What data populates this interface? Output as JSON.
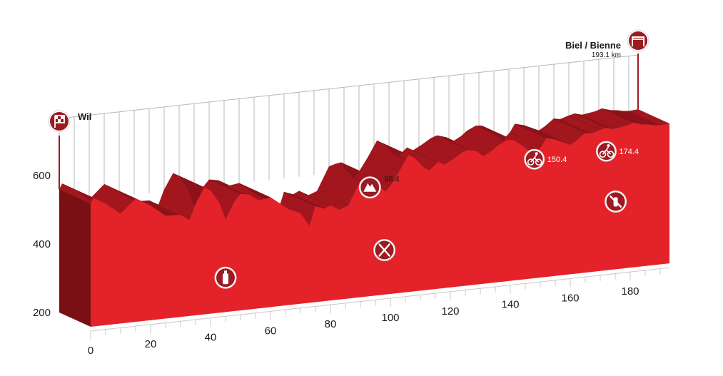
{
  "chart_data": {
    "type": "area",
    "title": "",
    "xlabel": "",
    "ylabel": "",
    "xlim": [
      0,
      193.1
    ],
    "ylim": [
      200,
      600
    ],
    "x_ticks": [
      0,
      20,
      40,
      60,
      80,
      100,
      120,
      140,
      160,
      180
    ],
    "y_ticks": [
      200,
      400,
      600
    ],
    "elevation_profile": {
      "x": [
        0,
        1,
        5,
        10,
        15,
        20,
        25,
        30,
        33,
        35,
        38,
        40,
        43,
        45,
        48,
        50,
        53,
        56,
        60,
        63,
        66,
        70,
        73,
        75,
        78,
        80,
        83,
        86,
        90,
        92,
        94,
        96,
        98.4,
        100,
        103,
        106,
        108,
        111,
        113,
        116,
        118,
        121,
        124,
        126,
        129,
        131,
        134,
        136,
        139,
        141,
        143,
        146,
        148,
        150.4,
        152,
        155,
        157,
        160,
        162,
        165,
        167,
        170,
        172,
        174.4,
        176,
        179,
        181,
        184,
        186,
        188,
        190,
        193.1
      ],
      "y": [
        560,
        575,
        555,
        520,
        560,
        535,
        500,
        498,
        480,
        525,
        570,
        560,
        520,
        470,
        520,
        540,
        535,
        515,
        520,
        500,
        480,
        465,
        425,
        480,
        470,
        478,
        462,
        472,
        540,
        545,
        548,
        520,
        500,
        515,
        555,
        600,
        590,
        560,
        548,
        570,
        560,
        574,
        590,
        596,
        588,
        572,
        586,
        600,
        612,
        610,
        598,
        576,
        562,
        582,
        605,
        598,
        590,
        578,
        588,
        608,
        604,
        612,
        616,
        610,
        612,
        616,
        622,
        614,
        612,
        608,
        606,
        608
      ]
    },
    "markers": [
      {
        "name": "start",
        "label": "Wil",
        "km": 0,
        "icon": "start-flag-icon"
      },
      {
        "name": "finish",
        "label": "Biel / Bienne",
        "sublabel": "193.1 km",
        "km": 193.1,
        "icon": "finish-arch-icon"
      },
      {
        "name": "climb",
        "label": "98.4",
        "km": 98.4,
        "icon": "mountain-icon"
      },
      {
        "name": "sprint-1",
        "label": "150.4",
        "km": 150.4,
        "icon": "bike-sprint-icon"
      },
      {
        "name": "sprint-2",
        "label": "174.4",
        "km": 174.4,
        "icon": "bike-sprint-icon"
      },
      {
        "name": "feed-zone",
        "label": "",
        "km": 98,
        "icon": "fork-knife-icon"
      },
      {
        "name": "water-bottle",
        "label": "",
        "km": 45,
        "icon": "bottle-icon"
      },
      {
        "name": "no-bottle-zone",
        "label": "",
        "km": 178,
        "icon": "no-bottle-icon"
      }
    ]
  },
  "colors": {
    "front": "#e42229",
    "top": "#a3161d",
    "side": "#7a1014",
    "marker": "#9b1b23",
    "grid": "#b8b8b8",
    "axis": "#c8c8c8"
  }
}
